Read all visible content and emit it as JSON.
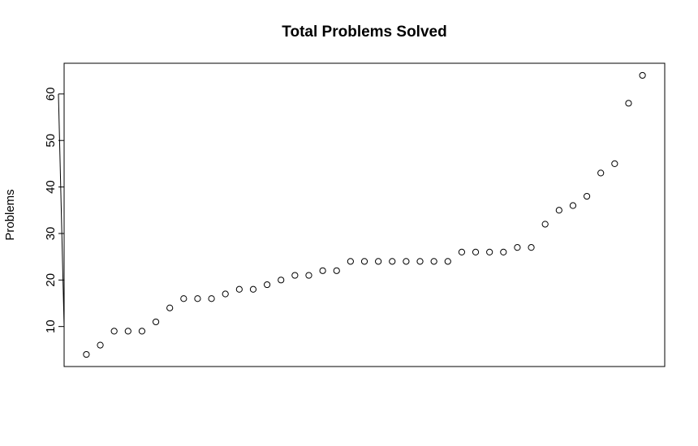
{
  "chart_data": {
    "type": "scatter",
    "title": "Total Problems Solved",
    "y_label": "Problems",
    "values": [
      4,
      6,
      9,
      9,
      9,
      11,
      14,
      16,
      16,
      16,
      17,
      18,
      18,
      19,
      20,
      21,
      21,
      22,
      22,
      24,
      24,
      24,
      24,
      24,
      24,
      24,
      24,
      26,
      26,
      26,
      26,
      27,
      27,
      32,
      35,
      36,
      38,
      43,
      45,
      58,
      64
    ],
    "color": "#000000",
    "ylim": [
      1.4,
      66.6
    ],
    "yticks": [
      10,
      20,
      30,
      40,
      50,
      60
    ]
  }
}
